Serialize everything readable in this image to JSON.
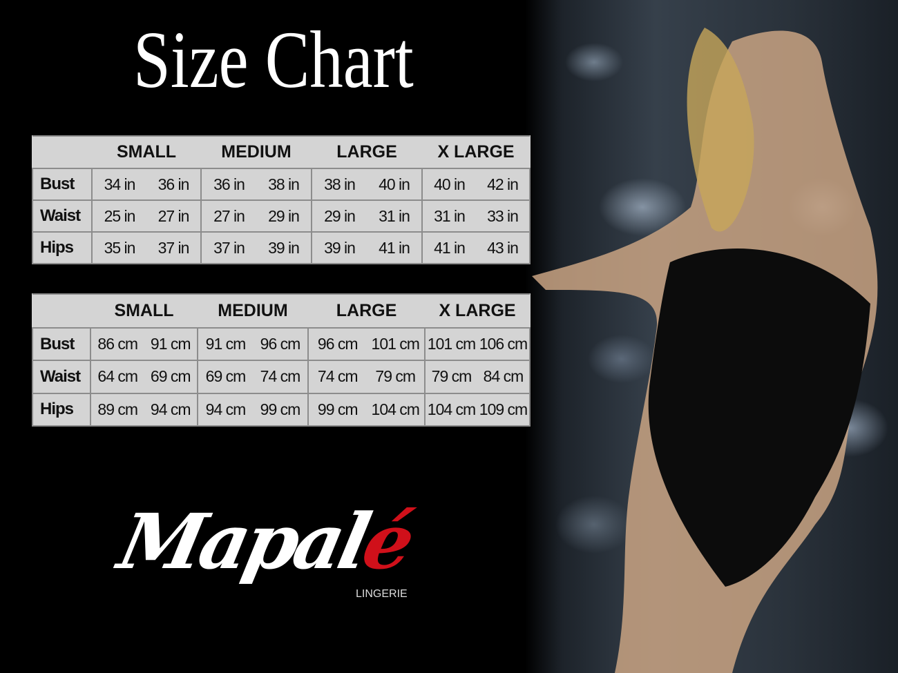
{
  "title": "Size Chart",
  "sizes": [
    "SMALL",
    "MEDIUM",
    "LARGE",
    "X LARGE"
  ],
  "tables": [
    {
      "unit": "in",
      "rows": [
        {
          "label": "Bust",
          "values": [
            "34 in",
            "36 in",
            "36 in",
            "38 in",
            "38 in",
            "40 in",
            "40 in",
            "42 in"
          ]
        },
        {
          "label": "Waist",
          "values": [
            "25 in",
            "27 in",
            "27 in",
            "29 in",
            "29 in",
            "31 in",
            "31 in",
            "33 in"
          ]
        },
        {
          "label": "Hips",
          "values": [
            "35 in",
            "37 in",
            "37 in",
            "39 in",
            "39 in",
            "41 in",
            "41 in",
            "43 in"
          ]
        }
      ]
    },
    {
      "unit": "cm",
      "rows": [
        {
          "label": "Bust",
          "values": [
            "86 cm",
            "91 cm",
            "91 cm",
            "96 cm",
            "96 cm",
            "101 cm",
            "101 cm",
            "106 cm"
          ]
        },
        {
          "label": "Waist",
          "values": [
            "64 cm",
            "69 cm",
            "69 cm",
            "74 cm",
            "74 cm",
            "79  cm",
            "79 cm",
            "84 cm"
          ]
        },
        {
          "label": "Hips",
          "values": [
            "89 cm",
            "94 cm",
            "94 cm",
            "99 cm",
            "99 cm",
            "104 cm",
            "104 cm",
            "109 cm"
          ]
        }
      ]
    }
  ],
  "logo": {
    "name_main": "Mapal",
    "name_accent": "é",
    "subtitle": "LINGERIE",
    "accent_color": "#d0101a"
  }
}
